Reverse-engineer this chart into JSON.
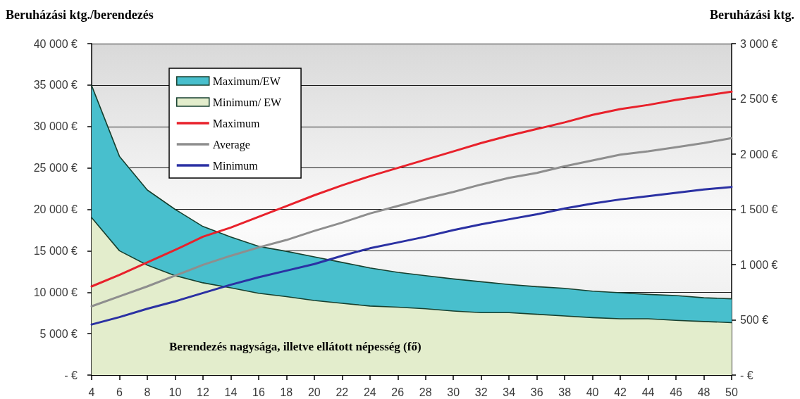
{
  "chart_data": {
    "type": "line",
    "xlabel": "Berendezés nagysága, illetve ellátott népesség (fő)",
    "ylabel": "Beruházási ktg./berendezés",
    "y2label": "Beruházási ktg.",
    "x": [
      4,
      6,
      8,
      10,
      12,
      14,
      16,
      18,
      20,
      22,
      24,
      26,
      28,
      30,
      32,
      34,
      36,
      38,
      40,
      42,
      44,
      46,
      48,
      50
    ],
    "series": [
      {
        "name": "Maximum/EW",
        "type": "area",
        "axis": "y2",
        "color": "#48bfcd",
        "values": [
          2620,
          1980,
          1675,
          1500,
          1345,
          1250,
          1165,
          1120,
          1070,
          1020,
          970,
          930,
          900,
          870,
          845,
          820,
          800,
          785,
          760,
          745,
          730,
          720,
          700,
          690
        ]
      },
      {
        "name": "Minimum/ EW",
        "type": "area",
        "axis": "y2",
        "color": "#e3edcc",
        "values": [
          1425,
          1125,
          995,
          900,
          835,
          790,
          740,
          710,
          675,
          650,
          625,
          615,
          600,
          580,
          565,
          565,
          550,
          535,
          520,
          510,
          510,
          495,
          485,
          475
        ]
      },
      {
        "name": "Maximum",
        "color": "#e8212b",
        "values": [
          10700,
          12100,
          13600,
          15100,
          16700,
          17800,
          19100,
          20400,
          21700,
          22900,
          24000,
          25000,
          26000,
          27000,
          28000,
          28900,
          29700,
          30500,
          31400,
          32100,
          32600,
          33200,
          33700,
          34200
        ]
      },
      {
        "name": "Average",
        "color": "#8e8e8e",
        "values": [
          8300,
          9500,
          10700,
          12000,
          13300,
          14400,
          15400,
          16300,
          17400,
          18400,
          19500,
          20400,
          21300,
          22100,
          23000,
          23800,
          24400,
          25200,
          25900,
          26600,
          27000,
          27500,
          28000,
          28600
        ]
      },
      {
        "name": "Minimum",
        "color": "#2b31a3",
        "values": [
          6100,
          7000,
          8000,
          8900,
          9900,
          10900,
          11800,
          12600,
          13400,
          14400,
          15300,
          16000,
          16700,
          17500,
          18200,
          18800,
          19400,
          20100,
          20700,
          21200,
          21600,
          22000,
          22400,
          22700
        ]
      }
    ],
    "xlim": [
      4,
      50
    ],
    "xticks": [
      4,
      6,
      8,
      10,
      12,
      14,
      16,
      18,
      20,
      22,
      24,
      26,
      28,
      30,
      32,
      34,
      36,
      38,
      40,
      42,
      44,
      46,
      48,
      50
    ],
    "ylim": [
      0,
      40000
    ],
    "yticks": [
      {
        "value": 0,
        "label": "- €"
      },
      {
        "value": 5000,
        "label": "5 000 €"
      },
      {
        "value": 10000,
        "label": "10 000 €"
      },
      {
        "value": 15000,
        "label": "15 000 €"
      },
      {
        "value": 20000,
        "label": "20 000 €"
      },
      {
        "value": 25000,
        "label": "25 000 €"
      },
      {
        "value": 30000,
        "label": "30 000 €"
      },
      {
        "value": 35000,
        "label": "35 000 €"
      },
      {
        "value": 40000,
        "label": "40 000 €"
      }
    ],
    "y2lim": [
      0,
      3000
    ],
    "y2ticks": [
      {
        "value": 0,
        "label": "- €"
      },
      {
        "value": 500,
        "label": "500 €"
      },
      {
        "value": 1000,
        "label": "1 000 €"
      },
      {
        "value": 1500,
        "label": "1 500 €"
      },
      {
        "value": 2000,
        "label": "2 000 €"
      },
      {
        "value": 2500,
        "label": "2 500 €"
      },
      {
        "value": 3000,
        "label": "3 000 €"
      }
    ],
    "grid": "y",
    "legend": "top left"
  }
}
